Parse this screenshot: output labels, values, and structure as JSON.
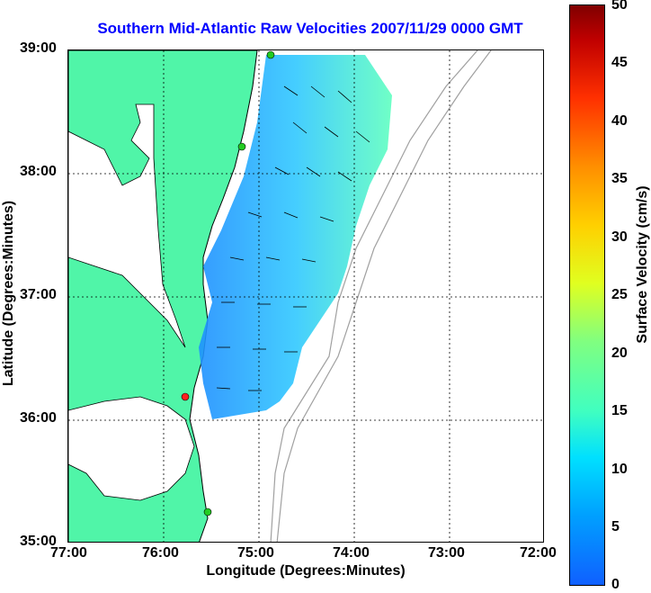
{
  "title": "Southern Mid-Atlantic Raw Velocities 2007/11/29 0000 GMT",
  "x_axis": {
    "label": "Longitude (Degrees:Minutes)",
    "ticks": [
      "77:00",
      "76:00",
      "75:00",
      "74:00",
      "73:00",
      "72:00"
    ]
  },
  "y_axis": {
    "label": "Latitude (Degrees:Minutes)",
    "ticks": [
      "39:00",
      "38:00",
      "37:00",
      "36:00",
      "35:00"
    ]
  },
  "colorbar": {
    "label": "Surface Velocity (cm/s)",
    "ticks": [
      "50",
      "45",
      "40",
      "35",
      "30",
      "25",
      "20",
      "15",
      "10",
      "5",
      "0"
    ]
  },
  "colors": {
    "title": "#0000ff",
    "land": "#50f5a8",
    "ocean_field_slow": "#1e90ff",
    "ocean_field_fast": "#60ffc0",
    "station_active": "#22cc22",
    "station_alert": "#ff2020",
    "bathymetry": "#a0a0a0"
  }
}
